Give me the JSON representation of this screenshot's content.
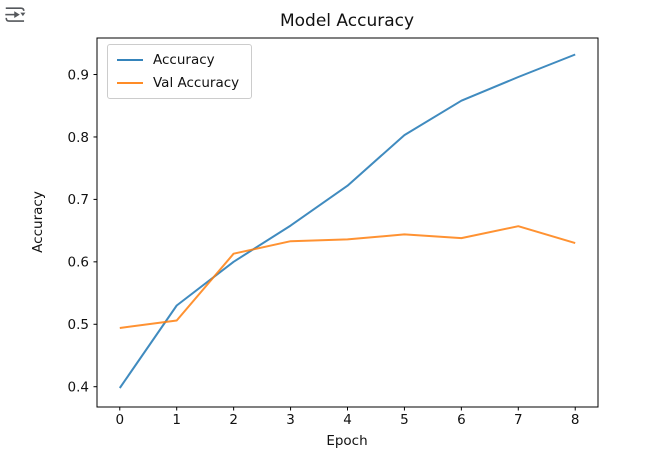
{
  "icons": {
    "top_left": "arrow-into-dropdown-icon",
    "top_left_color": "#55585c"
  },
  "chart_data": {
    "type": "line",
    "title": "Model Accuracy",
    "xlabel": "Epoch",
    "ylabel": "Accuracy",
    "x": [
      0,
      1,
      2,
      3,
      4,
      5,
      6,
      7,
      8
    ],
    "series": [
      {
        "name": "Accuracy",
        "color": "#1f77b4",
        "values": [
          0.398,
          0.53,
          0.6,
          0.658,
          0.722,
          0.803,
          0.858,
          0.896,
          0.932
        ]
      },
      {
        "name": "Val Accuracy",
        "color": "#ff7f0e",
        "values": [
          0.494,
          0.506,
          0.613,
          0.633,
          0.636,
          0.644,
          0.638,
          0.657,
          0.63
        ]
      }
    ],
    "xticks": [
      0,
      1,
      2,
      3,
      4,
      5,
      6,
      7,
      8
    ],
    "yticks": [
      0.4,
      0.5,
      0.6,
      0.7,
      0.8,
      0.9
    ],
    "xlim": [
      -0.4,
      8.4
    ],
    "ylim": [
      0.3675,
      0.9585
    ],
    "grid": false,
    "legend_position": "upper left",
    "axis_color": "#000000",
    "tick_label_color": "#111111"
  }
}
